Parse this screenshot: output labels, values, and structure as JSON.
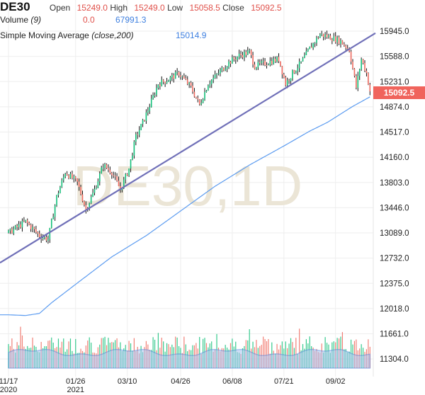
{
  "header": {
    "symbol": "DE30",
    "open_label": "Open",
    "open": "15249.0",
    "high_label": "High",
    "high": "15249.0",
    "low_label": "Low",
    "low": "15058.5",
    "close_label": "Close",
    "close": "15092.5",
    "volume_label": "Volume",
    "volume_param": "(9)",
    "volume_value": "0.0",
    "volume_ma": "67991.3",
    "sma_label": "Simple Moving Average",
    "sma_param": "(close,200)",
    "sma_value": "15014.9"
  },
  "watermark": "DE30,1D",
  "colors": {
    "up": "#13c07a",
    "down": "#ef6a5f",
    "wick": "#111111",
    "trend": "#7070b8",
    "sma": "#5b9bf0",
    "volume_area": "#a9c4f0",
    "price_box": "#f0645c"
  },
  "chart_data": {
    "type": "ohlc",
    "title": "DE30, 1D",
    "y_ticks": [
      "15945.0",
      "15588.0",
      "15231.0",
      "14874.0",
      "14517.0",
      "14160.0",
      "13803.0",
      "13446.0",
      "13089.0",
      "12732.0",
      "12375.0",
      "12018.0",
      "11661.0",
      "11304.0"
    ],
    "ylim": [
      11170,
      16080
    ],
    "x_ticks": [
      "11/17",
      "01/26",
      "03/10",
      "04/26",
      "06/08",
      "07/21",
      "09/02"
    ],
    "x_tick_bars": [
      0,
      39,
      69,
      100,
      130,
      160,
      190
    ],
    "x_year_labels": [
      "2020",
      "2021"
    ],
    "bar_count": 210,
    "close_path": [
      [
        0,
        13090
      ],
      [
        10,
        13250
      ],
      [
        18,
        13050
      ],
      [
        23,
        13000
      ],
      [
        28,
        13600
      ],
      [
        33,
        13950
      ],
      [
        40,
        13800
      ],
      [
        45,
        13420
      ],
      [
        50,
        13700
      ],
      [
        55,
        14050
      ],
      [
        60,
        13950
      ],
      [
        65,
        13700
      ],
      [
        70,
        14000
      ],
      [
        74,
        14450
      ],
      [
        78,
        14650
      ],
      [
        83,
        14950
      ],
      [
        87,
        15200
      ],
      [
        92,
        15250
      ],
      [
        99,
        15350
      ],
      [
        106,
        15150
      ],
      [
        111,
        14900
      ],
      [
        116,
        15200
      ],
      [
        122,
        15350
      ],
      [
        128,
        15500
      ],
      [
        134,
        15600
      ],
      [
        140,
        15650
      ],
      [
        143,
        15450
      ],
      [
        150,
        15500
      ],
      [
        157,
        15550
      ],
      [
        161,
        15200
      ],
      [
        165,
        15350
      ],
      [
        170,
        15500
      ],
      [
        175,
        15700
      ],
      [
        181,
        15900
      ],
      [
        188,
        15850
      ],
      [
        193,
        15800
      ],
      [
        198,
        15680
      ],
      [
        202,
        15150
      ],
      [
        205,
        15550
      ],
      [
        208,
        15350
      ],
      [
        210,
        15092.5
      ]
    ],
    "sma_path": [
      [
        0,
        11930
      ],
      [
        10,
        11920
      ],
      [
        18,
        11950
      ],
      [
        25,
        12100
      ],
      [
        40,
        12380
      ],
      [
        60,
        12750
      ],
      [
        80,
        13050
      ],
      [
        100,
        13400
      ],
      [
        120,
        13750
      ],
      [
        140,
        14050
      ],
      [
        160,
        14320
      ],
      [
        175,
        14530
      ],
      [
        185,
        14650
      ],
      [
        200,
        14880
      ],
      [
        210,
        15014.9
      ]
    ],
    "trendline": [
      [
        0,
        12740
      ],
      [
        210,
        15870
      ]
    ],
    "last_price": "15092.5"
  }
}
